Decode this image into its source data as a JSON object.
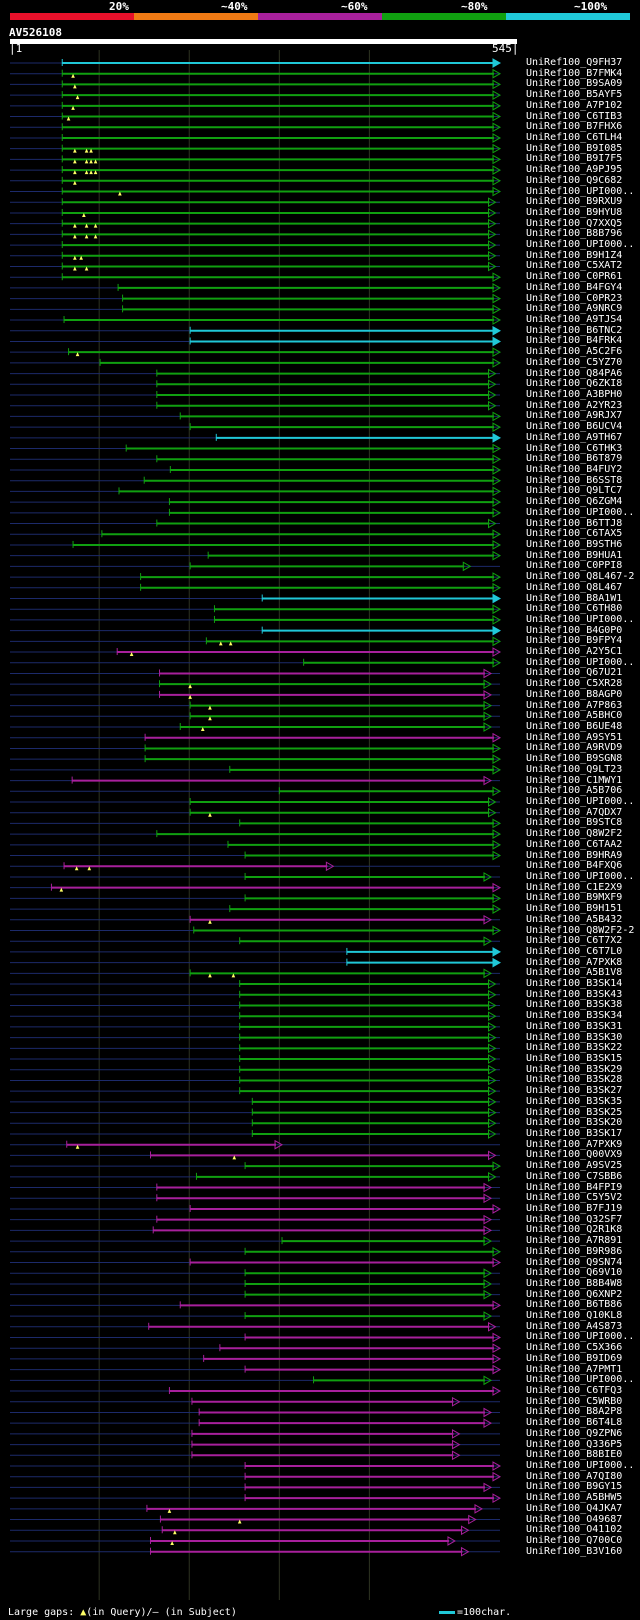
{
  "query_id": "AV526108",
  "legend": {
    "labels": [
      "20%",
      "~40%",
      "~60%",
      "~80%",
      "~100%"
    ],
    "colors": [
      "#e8102a",
      "#f07a14",
      "#a8209c",
      "#10a010",
      "#20c8d8"
    ]
  },
  "ruler": {
    "start": "1",
    "end": "545"
  },
  "footer": {
    "gaps_label": "Large gaps:",
    "gap_query": "(in Query)/",
    "gap_subject": "(in Subject)",
    "scale_label": "=100char."
  },
  "chart_data": {
    "type": "alignment",
    "query_length": 545,
    "color_codes": {
      "c": "#20c8d8",
      "g": "#10a010",
      "m": "#a8209c"
    },
    "hits": [
      {
        "id": "UniRef100_Q9FH37",
        "s": 59,
        "e": 545,
        "c": "c",
        "gq": []
      },
      {
        "id": "UniRef100_B7FMK4",
        "s": 59,
        "e": 545,
        "c": "g",
        "gq": [
          71
        ]
      },
      {
        "id": "UniRef100_B9SA09",
        "s": 59,
        "e": 545,
        "c": "g",
        "gq": [
          73
        ]
      },
      {
        "id": "UniRef100_B5AYF5",
        "s": 59,
        "e": 545,
        "c": "g",
        "gq": [
          76
        ]
      },
      {
        "id": "UniRef100_A7P102",
        "s": 59,
        "e": 545,
        "c": "g",
        "gq": [
          71
        ]
      },
      {
        "id": "UniRef100_C6TIB3",
        "s": 59,
        "e": 545,
        "c": "g",
        "gq": [
          66
        ]
      },
      {
        "id": "UniRef100_B7FHX6",
        "s": 59,
        "e": 545,
        "c": "g",
        "gq": []
      },
      {
        "id": "UniRef100_C6TLH4",
        "s": 59,
        "e": 545,
        "c": "g",
        "gq": []
      },
      {
        "id": "UniRef100_B9I085",
        "s": 59,
        "e": 545,
        "c": "g",
        "gq": [
          73,
          86,
          91
        ]
      },
      {
        "id": "UniRef100_B9I7F5",
        "s": 59,
        "e": 545,
        "c": "g",
        "gq": [
          73,
          86,
          91,
          96
        ]
      },
      {
        "id": "UniRef100_A9PJ95",
        "s": 59,
        "e": 545,
        "c": "g",
        "gq": [
          73,
          86,
          91,
          96
        ]
      },
      {
        "id": "UniRef100_Q9C682",
        "s": 59,
        "e": 545,
        "c": "g",
        "gq": [
          73
        ]
      },
      {
        "id": "UniRef100_UPI000..",
        "s": 59,
        "e": 545,
        "c": "g",
        "gq": [
          123
        ]
      },
      {
        "id": "UniRef100_B9RXU9",
        "s": 59,
        "e": 540,
        "c": "g",
        "gq": []
      },
      {
        "id": "UniRef100_B9HYU8",
        "s": 59,
        "e": 540,
        "c": "g",
        "gq": [
          83
        ]
      },
      {
        "id": "UniRef100_Q7XXQ5",
        "s": 59,
        "e": 540,
        "c": "g",
        "gq": [
          73,
          86,
          96
        ]
      },
      {
        "id": "UniRef100_B8B796",
        "s": 59,
        "e": 540,
        "c": "g",
        "gq": [
          73,
          86,
          96
        ]
      },
      {
        "id": "UniRef100_UPI000..",
        "s": 59,
        "e": 540,
        "c": "g",
        "gq": []
      },
      {
        "id": "UniRef100_B9H1Z4",
        "s": 59,
        "e": 540,
        "c": "g",
        "gq": [
          73,
          80
        ]
      },
      {
        "id": "UniRef100_C5XAT2",
        "s": 59,
        "e": 540,
        "c": "g",
        "gq": [
          73,
          86
        ]
      },
      {
        "id": "UniRef100_C0PR61",
        "s": 59,
        "e": 545,
        "c": "g",
        "gq": []
      },
      {
        "id": "UniRef100_B4FGY4",
        "s": 121,
        "e": 545,
        "c": "g",
        "gq": []
      },
      {
        "id": "UniRef100_C0PR23",
        "s": 126,
        "e": 545,
        "c": "g",
        "gq": []
      },
      {
        "id": "UniRef100_A9NRC9",
        "s": 126,
        "e": 545,
        "c": "g",
        "gq": []
      },
      {
        "id": "UniRef100_A9TJS4",
        "s": 61,
        "e": 545,
        "c": "g",
        "gq": []
      },
      {
        "id": "UniRef100_B6TNC2",
        "s": 201,
        "e": 545,
        "c": "c",
        "gq": []
      },
      {
        "id": "UniRef100_B4FRK4",
        "s": 201,
        "e": 545,
        "c": "c",
        "gq": []
      },
      {
        "id": "UniRef100_A5C2F6",
        "s": 66,
        "e": 545,
        "c": "g",
        "gq": [
          76
        ]
      },
      {
        "id": "UniRef100_C5YZ70",
        "s": 101,
        "e": 545,
        "c": "g",
        "gq": []
      },
      {
        "id": "UniRef100_Q84PA6",
        "s": 164,
        "e": 540,
        "c": "g",
        "gq": []
      },
      {
        "id": "UniRef100_Q6ZKI8",
        "s": 164,
        "e": 540,
        "c": "g",
        "gq": []
      },
      {
        "id": "UniRef100_A3BPH0",
        "s": 164,
        "e": 540,
        "c": "g",
        "gq": []
      },
      {
        "id": "UniRef100_A2YR23",
        "s": 164,
        "e": 540,
        "c": "g",
        "gq": []
      },
      {
        "id": "UniRef100_A9RJX7",
        "s": 190,
        "e": 545,
        "c": "g",
        "gq": []
      },
      {
        "id": "UniRef100_B6UCV4",
        "s": 201,
        "e": 545,
        "c": "g",
        "gq": []
      },
      {
        "id": "UniRef100_A9TH67",
        "s": 230,
        "e": 545,
        "c": "c",
        "gq": []
      },
      {
        "id": "UniRef100_C6THK3",
        "s": 130,
        "e": 545,
        "c": "g",
        "gq": []
      },
      {
        "id": "UniRef100_B6T879",
        "s": 164,
        "e": 545,
        "c": "g",
        "gq": []
      },
      {
        "id": "UniRef100_B4FUY2",
        "s": 179,
        "e": 545,
        "c": "g",
        "gq": []
      },
      {
        "id": "UniRef100_B6SST8",
        "s": 150,
        "e": 545,
        "c": "g",
        "gq": []
      },
      {
        "id": "UniRef100_Q9LTC7",
        "s": 122,
        "e": 545,
        "c": "g",
        "gq": []
      },
      {
        "id": "UniRef100_Q6ZGM4",
        "s": 178,
        "e": 545,
        "c": "g",
        "gq": []
      },
      {
        "id": "UniRef100_UPI000..",
        "s": 178,
        "e": 545,
        "c": "g",
        "gq": []
      },
      {
        "id": "UniRef100_B6TTJ8",
        "s": 164,
        "e": 540,
        "c": "g",
        "gq": []
      },
      {
        "id": "UniRef100_C6TAX5",
        "s": 103,
        "e": 545,
        "c": "g",
        "gq": []
      },
      {
        "id": "UniRef100_B9STH6",
        "s": 71,
        "e": 545,
        "c": "g",
        "gq": []
      },
      {
        "id": "UniRef100_B9HUA1",
        "s": 221,
        "e": 545,
        "c": "g",
        "gq": []
      },
      {
        "id": "UniRef100_C0PPI8",
        "s": 201,
        "e": 512,
        "c": "g",
        "gq": []
      },
      {
        "id": "UniRef100_Q8L467-2",
        "s": 146,
        "e": 545,
        "c": "g",
        "gq": []
      },
      {
        "id": "UniRef100_Q8L467",
        "s": 146,
        "e": 545,
        "c": "g",
        "gq": []
      },
      {
        "id": "UniRef100_B8A1W1",
        "s": 281,
        "e": 545,
        "c": "c",
        "gq": []
      },
      {
        "id": "UniRef100_C6TH80",
        "s": 228,
        "e": 545,
        "c": "g",
        "gq": []
      },
      {
        "id": "UniRef100_UPI000..",
        "s": 228,
        "e": 545,
        "c": "g",
        "gq": []
      },
      {
        "id": "UniRef100_B4G0P0",
        "s": 281,
        "e": 545,
        "c": "c",
        "gq": []
      },
      {
        "id": "UniRef100_B9FPY4",
        "s": 219,
        "e": 545,
        "c": "g",
        "gq": [
          235,
          246
        ]
      },
      {
        "id": "UniRef100_A2Y5C1",
        "s": 120,
        "e": 545,
        "c": "m",
        "gq": [
          136
        ]
      },
      {
        "id": "UniRef100_UPI000..",
        "s": 327,
        "e": 545,
        "c": "g",
        "gq": []
      },
      {
        "id": "UniRef100_Q67U21",
        "s": 167,
        "e": 535,
        "c": "m",
        "gq": []
      },
      {
        "id": "UniRef100_C5XR28",
        "s": 167,
        "e": 535,
        "c": "g",
        "gq": [
          201
        ]
      },
      {
        "id": "UniRef100_B8AGP0",
        "s": 167,
        "e": 535,
        "c": "m",
        "gq": [
          201
        ]
      },
      {
        "id": "UniRef100_A7P863",
        "s": 201,
        "e": 535,
        "c": "g",
        "gq": [
          223
        ]
      },
      {
        "id": "UniRef100_A5BHC0",
        "s": 201,
        "e": 535,
        "c": "g",
        "gq": [
          223
        ]
      },
      {
        "id": "UniRef100_B6UE48",
        "s": 190,
        "e": 535,
        "c": "g",
        "gq": [
          215
        ]
      },
      {
        "id": "UniRef100_A9SY51",
        "s": 151,
        "e": 545,
        "c": "m",
        "gq": []
      },
      {
        "id": "UniRef100_A9RVD9",
        "s": 151,
        "e": 545,
        "c": "g",
        "gq": []
      },
      {
        "id": "UniRef100_B9SGN8",
        "s": 151,
        "e": 545,
        "c": "g",
        "gq": []
      },
      {
        "id": "UniRef100_Q9LT23",
        "s": 245,
        "e": 545,
        "c": "g",
        "gq": []
      },
      {
        "id": "UniRef100_C1MWY1",
        "s": 70,
        "e": 535,
        "c": "m",
        "gq": []
      },
      {
        "id": "UniRef100_A5B706",
        "s": 300,
        "e": 545,
        "c": "g",
        "gq": []
      },
      {
        "id": "UniRef100_UPI000..",
        "s": 201,
        "e": 540,
        "c": "g",
        "gq": []
      },
      {
        "id": "UniRef100_A7QDX7",
        "s": 201,
        "e": 540,
        "c": "g",
        "gq": [
          223
        ]
      },
      {
        "id": "UniRef100_B9STC8",
        "s": 256,
        "e": 545,
        "c": "g",
        "gq": []
      },
      {
        "id": "UniRef100_Q8W2F2",
        "s": 164,
        "e": 545,
        "c": "g",
        "gq": []
      },
      {
        "id": "UniRef100_C6TAA2",
        "s": 243,
        "e": 545,
        "c": "g",
        "gq": []
      },
      {
        "id": "UniRef100_B9HRA9",
        "s": 262,
        "e": 545,
        "c": "g",
        "gq": []
      },
      {
        "id": "UniRef100_B4FXQ6",
        "s": 61,
        "e": 360,
        "c": "m",
        "gq": [
          75,
          89
        ]
      },
      {
        "id": "UniRef100_UPI000..",
        "s": 262,
        "e": 535,
        "c": "g",
        "gq": []
      },
      {
        "id": "UniRef100_C1E2X9",
        "s": 47,
        "e": 545,
        "c": "m",
        "gq": [
          58
        ]
      },
      {
        "id": "UniRef100_B9MXF9",
        "s": 262,
        "e": 545,
        "c": "g",
        "gq": []
      },
      {
        "id": "UniRef100_B9H151",
        "s": 245,
        "e": 545,
        "c": "g",
        "gq": []
      },
      {
        "id": "UniRef100_A5B432",
        "s": 201,
        "e": 535,
        "c": "m",
        "gq": [
          223
        ]
      },
      {
        "id": "UniRef100_Q8W2F2-2",
        "s": 205,
        "e": 545,
        "c": "g",
        "gq": []
      },
      {
        "id": "UniRef100_C6T7X2",
        "s": 256,
        "e": 535,
        "c": "g",
        "gq": []
      },
      {
        "id": "UniRef100_C6T7L0",
        "s": 375,
        "e": 545,
        "c": "c",
        "gq": []
      },
      {
        "id": "UniRef100_A7PXK8",
        "s": 375,
        "e": 545,
        "c": "c",
        "gq": []
      },
      {
        "id": "UniRef100_A5B1V8",
        "s": 201,
        "e": 535,
        "c": "g",
        "gq": [
          223,
          249
        ]
      },
      {
        "id": "UniRef100_B3SK14",
        "s": 256,
        "e": 540,
        "c": "g",
        "gq": []
      },
      {
        "id": "UniRef100_B3SK43",
        "s": 256,
        "e": 540,
        "c": "g",
        "gq": []
      },
      {
        "id": "UniRef100_B3SK38",
        "s": 256,
        "e": 540,
        "c": "g",
        "gq": []
      },
      {
        "id": "UniRef100_B3SK34",
        "s": 256,
        "e": 540,
        "c": "g",
        "gq": []
      },
      {
        "id": "UniRef100_B3SK31",
        "s": 256,
        "e": 540,
        "c": "g",
        "gq": []
      },
      {
        "id": "UniRef100_B3SK30",
        "s": 256,
        "e": 540,
        "c": "g",
        "gq": []
      },
      {
        "id": "UniRef100_B3SK22",
        "s": 256,
        "e": 540,
        "c": "g",
        "gq": []
      },
      {
        "id": "UniRef100_B3SK15",
        "s": 256,
        "e": 540,
        "c": "g",
        "gq": []
      },
      {
        "id": "UniRef100_B3SK29",
        "s": 256,
        "e": 540,
        "c": "g",
        "gq": []
      },
      {
        "id": "UniRef100_B3SK28",
        "s": 256,
        "e": 540,
        "c": "g",
        "gq": []
      },
      {
        "id": "UniRef100_B3SK27",
        "s": 256,
        "e": 540,
        "c": "g",
        "gq": []
      },
      {
        "id": "UniRef100_B3SK35",
        "s": 270,
        "e": 540,
        "c": "g",
        "gq": []
      },
      {
        "id": "UniRef100_B3SK25",
        "s": 270,
        "e": 540,
        "c": "g",
        "gq": []
      },
      {
        "id": "UniRef100_B3SK20",
        "s": 270,
        "e": 540,
        "c": "g",
        "gq": []
      },
      {
        "id": "UniRef100_B3SK17",
        "s": 270,
        "e": 540,
        "c": "g",
        "gq": []
      },
      {
        "id": "UniRef100_A7PXK9",
        "s": 64,
        "e": 303,
        "c": "m",
        "gq": [
          76
        ]
      },
      {
        "id": "UniRef100_Q00VX9",
        "s": 157,
        "e": 540,
        "c": "m",
        "gq": [
          250
        ]
      },
      {
        "id": "UniRef100_A9SV25",
        "s": 262,
        "e": 545,
        "c": "g",
        "gq": []
      },
      {
        "id": "UniRef100_C7SBB6",
        "s": 208,
        "e": 540,
        "c": "g",
        "gq": []
      },
      {
        "id": "UniRef100_B4FPI9",
        "s": 164,
        "e": 535,
        "c": "m",
        "gq": []
      },
      {
        "id": "UniRef100_C5Y5V2",
        "s": 164,
        "e": 535,
        "c": "m",
        "gq": []
      },
      {
        "id": "UniRef100_B7FJ19",
        "s": 201,
        "e": 545,
        "c": "m",
        "gq": []
      },
      {
        "id": "UniRef100_Q32SF7",
        "s": 164,
        "e": 535,
        "c": "m",
        "gq": []
      },
      {
        "id": "UniRef100_Q2R1K8",
        "s": 160,
        "e": 535,
        "c": "m",
        "gq": []
      },
      {
        "id": "UniRef100_A7R891",
        "s": 303,
        "e": 535,
        "c": "g",
        "gq": []
      },
      {
        "id": "UniRef100_B9R986",
        "s": 262,
        "e": 545,
        "c": "g",
        "gq": []
      },
      {
        "id": "UniRef100_Q9SN74",
        "s": 201,
        "e": 545,
        "c": "m",
        "gq": []
      },
      {
        "id": "UniRef100_Q69V10",
        "s": 262,
        "e": 535,
        "c": "g",
        "gq": []
      },
      {
        "id": "UniRef100_B8B4W8",
        "s": 262,
        "e": 535,
        "c": "g",
        "gq": []
      },
      {
        "id": "UniRef100_Q6XNP2",
        "s": 262,
        "e": 535,
        "c": "g",
        "gq": []
      },
      {
        "id": "UniRef100_B6TB86",
        "s": 190,
        "e": 545,
        "c": "m",
        "gq": []
      },
      {
        "id": "UniRef100_Q10KL8",
        "s": 262,
        "e": 535,
        "c": "g",
        "gq": []
      },
      {
        "id": "UniRef100_A4S873",
        "s": 155,
        "e": 540,
        "c": "m",
        "gq": []
      },
      {
        "id": "UniRef100_UPI000..",
        "s": 262,
        "e": 545,
        "c": "m",
        "gq": []
      },
      {
        "id": "UniRef100_C5X366",
        "s": 234,
        "e": 545,
        "c": "m",
        "gq": []
      },
      {
        "id": "UniRef100_B9ID69",
        "s": 216,
        "e": 545,
        "c": "m",
        "gq": []
      },
      {
        "id": "UniRef100_A7PMT1",
        "s": 262,
        "e": 545,
        "c": "m",
        "gq": []
      },
      {
        "id": "UniRef100_UPI000..",
        "s": 338,
        "e": 535,
        "c": "g",
        "gq": []
      },
      {
        "id": "UniRef100_C6TFQ3",
        "s": 178,
        "e": 545,
        "c": "m",
        "gq": []
      },
      {
        "id": "UniRef100_C5WRB0",
        "s": 203,
        "e": 500,
        "c": "m",
        "gq": []
      },
      {
        "id": "UniRef100_B8A2P8",
        "s": 211,
        "e": 535,
        "c": "m",
        "gq": []
      },
      {
        "id": "UniRef100_B6T4L8",
        "s": 211,
        "e": 535,
        "c": "m",
        "gq": []
      },
      {
        "id": "UniRef100_Q9ZPN6",
        "s": 203,
        "e": 500,
        "c": "m",
        "gq": []
      },
      {
        "id": "UniRef100_Q336P5",
        "s": 203,
        "e": 500,
        "c": "m",
        "gq": []
      },
      {
        "id": "UniRef100_B8BIE0",
        "s": 203,
        "e": 500,
        "c": "m",
        "gq": []
      },
      {
        "id": "UniRef100_UPI000..",
        "s": 262,
        "e": 545,
        "c": "m",
        "gq": []
      },
      {
        "id": "UniRef100_A7QI80",
        "s": 262,
        "e": 545,
        "c": "m",
        "gq": []
      },
      {
        "id": "UniRef100_B9GY15",
        "s": 262,
        "e": 535,
        "c": "m",
        "gq": []
      },
      {
        "id": "UniRef100_A5BHW5",
        "s": 262,
        "e": 545,
        "c": "m",
        "gq": []
      },
      {
        "id": "UniRef100_Q4JKA7",
        "s": 153,
        "e": 525,
        "c": "m",
        "gq": [
          178
        ]
      },
      {
        "id": "UniRef100_O49687",
        "s": 168,
        "e": 518,
        "c": "m",
        "gq": [
          256
        ]
      },
      {
        "id": "UniRef100_O41102",
        "s": 170,
        "e": 510,
        "c": "m",
        "gq": [
          184
        ]
      },
      {
        "id": "UniRef100_Q700C0",
        "s": 157,
        "e": 495,
        "c": "m",
        "gq": [
          181
        ]
      },
      {
        "id": "UniRef100_B3V160",
        "s": 157,
        "e": 510,
        "c": "m",
        "gq": []
      }
    ]
  }
}
